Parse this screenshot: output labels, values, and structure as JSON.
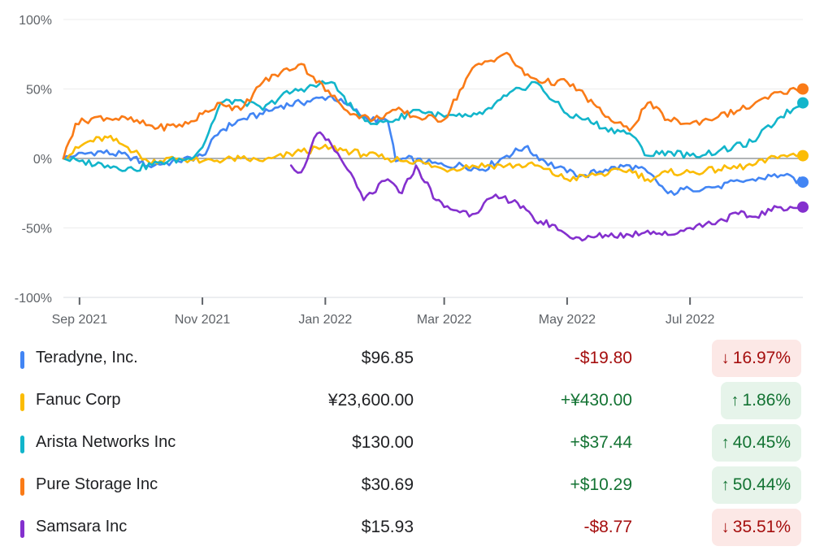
{
  "chart_data": {
    "type": "line",
    "y_unit": "%",
    "ylim": [
      -100,
      100
    ],
    "y_ticks": [
      "100%",
      "50%",
      "0%",
      "-50%",
      "-100%"
    ],
    "x_range": [
      "2021-08-24",
      "2022-08-26"
    ],
    "x_tick_dates": [
      "2021-09-01",
      "2021-11-01",
      "2022-01-01",
      "2022-03-01",
      "2022-05-01",
      "2022-07-01"
    ],
    "x_ticks": [
      "Sep 2021",
      "Nov 2021",
      "Jan 2022",
      "Mar 2022",
      "May 2022",
      "Jul 2022"
    ],
    "grid": true,
    "baseline": 0,
    "series": [
      {
        "name": "Teradyne, Inc.",
        "color": "#4285f4",
        "x": [
          "2021-08-24",
          "2021-08-30",
          "2021-09-10",
          "2021-09-25",
          "2021-10-05",
          "2021-10-20",
          "2021-11-01",
          "2021-11-10",
          "2021-11-20",
          "2021-12-01",
          "2021-12-10",
          "2021-12-20",
          "2022-01-04",
          "2022-01-15",
          "2022-01-22",
          "2022-02-01",
          "2022-02-05",
          "2022-02-10",
          "2022-02-20",
          "2022-03-01",
          "2022-03-10",
          "2022-03-20",
          "2022-04-01",
          "2022-04-10",
          "2022-04-20",
          "2022-05-01",
          "2022-05-10",
          "2022-05-20",
          "2022-06-01",
          "2022-06-10",
          "2022-06-20",
          "2022-07-01",
          "2022-07-15",
          "2022-08-01",
          "2022-08-15",
          "2022-08-26"
        ],
        "y": [
          0,
          2,
          5,
          2,
          -5,
          -2,
          2,
          20,
          28,
          32,
          38,
          40,
          45,
          35,
          28,
          27,
          -2,
          0,
          -3,
          -5,
          -5,
          -8,
          2,
          8,
          -2,
          -10,
          -12,
          -8,
          -5,
          -10,
          -25,
          -22,
          -20,
          -15,
          -12,
          -17
        ]
      },
      {
        "name": "Fanuc Corp",
        "color": "#fbbc04",
        "x": [
          "2021-08-24",
          "2021-09-05",
          "2021-09-15",
          "2021-09-25",
          "2021-10-05",
          "2021-10-20",
          "2021-11-01",
          "2021-11-20",
          "2021-12-01",
          "2021-12-20",
          "2022-01-04",
          "2022-01-20",
          "2022-02-01",
          "2022-02-15",
          "2022-03-01",
          "2022-03-15",
          "2022-04-01",
          "2022-04-15",
          "2022-05-01",
          "2022-05-15",
          "2022-06-01",
          "2022-06-10",
          "2022-06-20",
          "2022-07-01",
          "2022-07-15",
          "2022-08-01",
          "2022-08-15",
          "2022-08-26"
        ],
        "y": [
          0,
          12,
          15,
          8,
          -2,
          0,
          -2,
          0,
          -2,
          5,
          8,
          3,
          0,
          -2,
          -8,
          -5,
          -5,
          -5,
          -15,
          -12,
          -8,
          -15,
          -10,
          -10,
          -8,
          -5,
          2,
          2
        ]
      },
      {
        "name": "Arista Networks Inc",
        "color": "#12b5cb",
        "x": [
          "2021-08-24",
          "2021-09-01",
          "2021-09-15",
          "2021-09-28",
          "2021-10-10",
          "2021-10-25",
          "2021-11-01",
          "2021-11-10",
          "2021-11-20",
          "2021-12-01",
          "2021-12-10",
          "2021-12-20",
          "2022-01-04",
          "2022-01-15",
          "2022-01-25",
          "2022-02-05",
          "2022-02-15",
          "2022-03-01",
          "2022-03-10",
          "2022-03-20",
          "2022-04-01",
          "2022-04-15",
          "2022-05-01",
          "2022-05-10",
          "2022-05-20",
          "2022-06-01",
          "2022-06-10",
          "2022-06-20",
          "2022-07-01",
          "2022-07-15",
          "2022-08-01",
          "2022-08-15",
          "2022-08-26"
        ],
        "y": [
          0,
          -2,
          -5,
          -8,
          -3,
          0,
          8,
          40,
          42,
          35,
          45,
          50,
          55,
          35,
          25,
          28,
          35,
          30,
          30,
          32,
          45,
          55,
          32,
          28,
          22,
          18,
          2,
          5,
          2,
          5,
          12,
          30,
          40
        ]
      },
      {
        "name": "Pure Storage Inc",
        "color": "#fa7b17",
        "x": [
          "2021-08-24",
          "2021-08-30",
          "2021-09-10",
          "2021-09-25",
          "2021-10-10",
          "2021-10-25",
          "2021-11-01",
          "2021-11-10",
          "2021-11-20",
          "2021-12-01",
          "2021-12-10",
          "2021-12-20",
          "2022-01-04",
          "2022-01-15",
          "2022-01-25",
          "2022-02-05",
          "2022-02-15",
          "2022-03-01",
          "2022-03-15",
          "2022-04-01",
          "2022-04-10",
          "2022-04-20",
          "2022-05-01",
          "2022-05-10",
          "2022-05-20",
          "2022-06-01",
          "2022-06-10",
          "2022-06-20",
          "2022-07-01",
          "2022-07-15",
          "2022-08-01",
          "2022-08-15",
          "2022-08-26"
        ],
        "y": [
          0,
          25,
          30,
          28,
          22,
          25,
          32,
          40,
          35,
          55,
          62,
          68,
          45,
          32,
          28,
          35,
          30,
          28,
          65,
          76,
          60,
          55,
          55,
          45,
          30,
          20,
          40,
          28,
          25,
          30,
          38,
          48,
          50
        ]
      },
      {
        "name": "Samsara Inc",
        "color": "#8430ce",
        "x": [
          "2021-12-15",
          "2021-12-20",
          "2021-12-28",
          "2022-01-04",
          "2022-01-12",
          "2022-01-20",
          "2022-02-01",
          "2022-02-08",
          "2022-02-15",
          "2022-02-25",
          "2022-03-01",
          "2022-03-15",
          "2022-03-25",
          "2022-04-05",
          "2022-04-15",
          "2022-04-25",
          "2022-05-01",
          "2022-05-10",
          "2022-05-20",
          "2022-06-01",
          "2022-06-10",
          "2022-06-20",
          "2022-07-01",
          "2022-07-15",
          "2022-07-25",
          "2022-08-01",
          "2022-08-15",
          "2022-08-26"
        ],
        "y": [
          -5,
          -10,
          18,
          10,
          -8,
          -30,
          -15,
          -25,
          -5,
          -30,
          -35,
          -40,
          -28,
          -30,
          -45,
          -48,
          -55,
          -58,
          -55,
          -55,
          -52,
          -55,
          -50,
          -45,
          -40,
          -42,
          -35,
          -35
        ]
      }
    ]
  },
  "legend": [
    {
      "name": "Teradyne, Inc.",
      "price": "$96.85",
      "change": "-$19.80",
      "percent": "16.97%",
      "direction": "down",
      "arrow_icon": "arrow-down-icon",
      "color": "#4285f4"
    },
    {
      "name": "Fanuc Corp",
      "price": "¥23,600.00",
      "change": "+¥430.00",
      "percent": "1.86%",
      "direction": "up",
      "arrow_icon": "arrow-up-icon",
      "color": "#fbbc04"
    },
    {
      "name": "Arista Networks Inc",
      "price": "$130.00",
      "change": "+$37.44",
      "percent": "40.45%",
      "direction": "up",
      "arrow_icon": "arrow-up-icon",
      "color": "#12b5cb"
    },
    {
      "name": "Pure Storage Inc",
      "price": "$30.69",
      "change": "+$10.29",
      "percent": "50.44%",
      "direction": "up",
      "arrow_icon": "arrow-up-icon",
      "color": "#fa7b17"
    },
    {
      "name": "Samsara Inc",
      "price": "$15.93",
      "change": "-$8.77",
      "percent": "35.51%",
      "direction": "down",
      "arrow_icon": "arrow-down-icon",
      "color": "#8430ce"
    }
  ]
}
